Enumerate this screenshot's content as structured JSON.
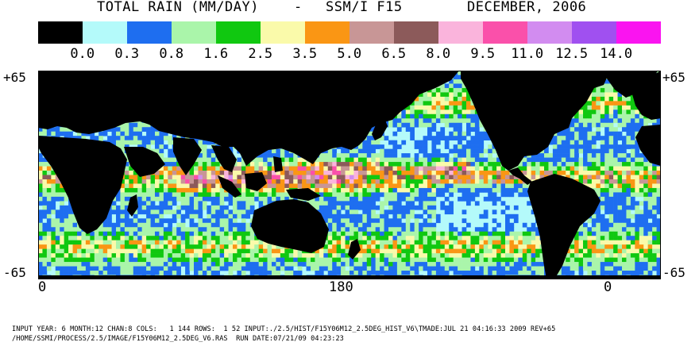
{
  "header": {
    "product": "TOTAL RAIN (MM/DAY)",
    "dash": "-",
    "sensor": "SSM/I F15",
    "period": "DECEMBER, 2006"
  },
  "legend": {
    "colors": [
      "#000000",
      "#b4fafa",
      "#1e6ef0",
      "#aaf5aa",
      "#10c810",
      "#fafaaa",
      "#fa9614",
      "#c89696",
      "#8c5a5a",
      "#fab4dc",
      "#fa50aa",
      "#d28cf0",
      "#a050f0",
      "#fa14f0"
    ],
    "ticks": [
      "0.0",
      "0.3",
      "0.8",
      "1.6",
      "2.5",
      "3.5",
      "5.0",
      "6.5",
      "8.0",
      "9.5",
      "11.0",
      "12.5",
      "14.0"
    ]
  },
  "axes": {
    "lat_top_left": "+65",
    "lat_top_right": "+65",
    "lat_bottom_left": "-65",
    "lat_bottom_right": "-65",
    "lon_labels": [
      "0",
      "180",
      "0"
    ]
  },
  "colors": {
    "land": "#000000",
    "ocean_background": "#b4fafa",
    "frame": "#000000"
  },
  "footer": {
    "line1": "INPUT YEAR: 6 MONTH:12 CHAN:8 COLS:   1 144 ROWS:  1 52 INPUT:./2.5/HIST/F15Y06M12_2.5DEG_HIST_V6\\TMADE:JUL 21 04:16:33 2009 REV+65",
    "line2": "/HOME/SSMI/PROCESS/2.5/IMAGE/F15Y06M12_2.5DEG_V6.RAS  RUN DATE:07/21/09 04:23:23"
  }
}
